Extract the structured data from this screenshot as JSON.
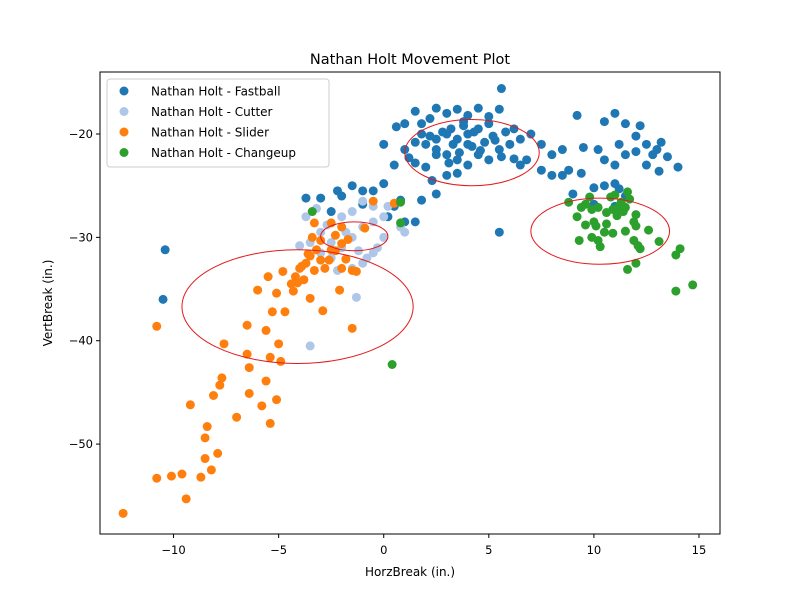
{
  "chart_data": {
    "type": "scatter",
    "title": "Nathan Holt Movement Plot",
    "xlabel": "HorzBreak (in.)",
    "ylabel": "VertBreak (in.)",
    "xlim": [
      -13.5,
      16.0
    ],
    "ylim": [
      -58.7,
      -14.0
    ],
    "xticks": [
      -10,
      -5,
      0,
      5,
      10,
      15
    ],
    "yticks": [
      -20,
      -30,
      -40,
      -50
    ],
    "xtick_labels": [
      "−10",
      "−5",
      "0",
      "5",
      "10",
      "15"
    ],
    "ytick_labels": [
      "−20",
      "−30",
      "−40",
      "−50"
    ],
    "grid": false,
    "legend_position": "upper-left",
    "series": [
      {
        "name": "Nathan Holt - Fastball",
        "color": "#1f77b4",
        "points": [
          [
            -10.4,
            -31.2
          ],
          [
            -10.5,
            -36.0
          ],
          [
            5.6,
            -15.6
          ],
          [
            5.5,
            -29.5
          ],
          [
            -3.7,
            -26.2
          ],
          [
            -2.0,
            -26.0
          ],
          [
            -1.5,
            -25.0
          ],
          [
            -1.0,
            -25.5
          ],
          [
            -0.5,
            -25.5
          ],
          [
            0.0,
            -24.8
          ],
          [
            0.5,
            -23.0
          ],
          [
            0.8,
            -26.4
          ],
          [
            1.0,
            -28.5
          ],
          [
            1.5,
            -28.5
          ],
          [
            1.8,
            -26.4
          ],
          [
            2.5,
            -25.8
          ],
          [
            0.0,
            -21.0
          ],
          [
            1.0,
            -21.5
          ],
          [
            1.2,
            -22.3
          ],
          [
            1.5,
            -20.8
          ],
          [
            0.6,
            -19.3
          ],
          [
            1.0,
            -19.0
          ],
          [
            1.8,
            -19.0
          ],
          [
            2.2,
            -18.5
          ],
          [
            1.5,
            -17.8
          ],
          [
            2.5,
            -17.5
          ],
          [
            3.0,
            -18.0
          ],
          [
            3.5,
            -17.6
          ],
          [
            4.0,
            -18.2
          ],
          [
            4.5,
            -17.5
          ],
          [
            5.0,
            -18.3
          ],
          [
            5.5,
            -17.6
          ],
          [
            5.0,
            -19.0
          ],
          [
            4.5,
            -19.5
          ],
          [
            4.0,
            -20.0
          ],
          [
            3.5,
            -20.5
          ],
          [
            3.0,
            -20.0
          ],
          [
            2.5,
            -20.5
          ],
          [
            2.0,
            -21.0
          ],
          [
            2.5,
            -21.5
          ],
          [
            3.0,
            -22.0
          ],
          [
            3.5,
            -22.5
          ],
          [
            4.0,
            -23.0
          ],
          [
            4.5,
            -22.0
          ],
          [
            5.0,
            -22.5
          ],
          [
            5.5,
            -21.5
          ],
          [
            6.0,
            -21.0
          ],
          [
            6.5,
            -20.5
          ],
          [
            7.0,
            -20.0
          ],
          [
            7.5,
            -21.0
          ],
          [
            8.0,
            -22.0
          ],
          [
            8.5,
            -21.5
          ],
          [
            6.5,
            -23.0
          ],
          [
            6.8,
            -22.5
          ],
          [
            7.5,
            -23.5
          ],
          [
            8.0,
            -24.0
          ],
          [
            8.5,
            -24.0
          ],
          [
            8.8,
            -23.5
          ],
          [
            2.3,
            -24.5
          ],
          [
            3.0,
            -24.0
          ],
          [
            3.5,
            -23.8
          ],
          [
            2.0,
            -23.2
          ],
          [
            1.5,
            -22.8
          ],
          [
            2.5,
            -22.0
          ],
          [
            4.2,
            -21.2
          ],
          [
            4.8,
            -20.8
          ],
          [
            5.2,
            -20.2
          ],
          [
            5.8,
            -19.8
          ],
          [
            6.2,
            -19.5
          ],
          [
            3.8,
            -19.2
          ],
          [
            3.2,
            -19.5
          ],
          [
            2.8,
            -19.8
          ],
          [
            2.2,
            -20.2
          ],
          [
            1.8,
            -20.0
          ],
          [
            3.6,
            -21.8
          ],
          [
            4.6,
            -21.6
          ],
          [
            5.6,
            -22.2
          ],
          [
            6.2,
            -22.4
          ],
          [
            3.3,
            -21.0
          ],
          [
            4.0,
            -21.0
          ],
          [
            9.2,
            -18.2
          ],
          [
            11.0,
            -18.0
          ],
          [
            10.5,
            -18.8
          ],
          [
            11.5,
            -19.0
          ],
          [
            12.2,
            -19.2
          ],
          [
            12.0,
            -20.2
          ],
          [
            12.5,
            -21.0
          ],
          [
            13.0,
            -21.5
          ],
          [
            13.2,
            -20.8
          ],
          [
            11.2,
            -21.0
          ],
          [
            10.2,
            -21.5
          ],
          [
            9.5,
            -21.3
          ],
          [
            10.5,
            -22.5
          ],
          [
            11.0,
            -23.0
          ],
          [
            11.5,
            -22.0
          ],
          [
            12.0,
            -21.7
          ],
          [
            12.8,
            -22.0
          ],
          [
            13.5,
            -22.2
          ],
          [
            13.1,
            -23.6
          ],
          [
            14.0,
            -23.2
          ],
          [
            10.0,
            -25.2
          ],
          [
            10.5,
            -25.0
          ],
          [
            11.2,
            -25.3
          ],
          [
            11.5,
            -26.0
          ],
          [
            9.4,
            -23.8
          ],
          [
            9.0,
            -25.8
          ],
          [
            11.0,
            -24.8
          ],
          [
            10.0,
            -26.8
          ],
          [
            11.0,
            -27.0
          ],
          [
            12.5,
            -23.0
          ],
          [
            -3.0,
            -26.2
          ],
          [
            -2.5,
            -27.5
          ],
          [
            0.2,
            -28.0
          ],
          [
            0.5,
            -27.0
          ],
          [
            -1.0,
            -26.8
          ],
          [
            -2.2,
            -25.5
          ],
          [
            3.8,
            -18.8
          ],
          [
            4.3,
            -19.8
          ],
          [
            5.3,
            -20.6
          ],
          [
            3.1,
            -22.8
          ]
        ]
      },
      {
        "name": "Nathan Holt - Cutter",
        "color": "#aec7e8",
        "points": [
          [
            -3.5,
            -40.5
          ],
          [
            -1.3,
            -35.8
          ],
          [
            -3.7,
            -28.0
          ],
          [
            -3.0,
            -29.5
          ],
          [
            -2.5,
            -30.5
          ],
          [
            -2.0,
            -31.0
          ],
          [
            -1.5,
            -30.0
          ],
          [
            -1.0,
            -29.0
          ],
          [
            -0.5,
            -28.5
          ],
          [
            0.0,
            -28.0
          ],
          [
            0.2,
            -27.0
          ],
          [
            0.8,
            -29.0
          ],
          [
            1.0,
            -29.5
          ],
          [
            -0.5,
            -31.5
          ],
          [
            -1.0,
            -32.5
          ],
          [
            -1.5,
            -33.0
          ],
          [
            -2.5,
            -32.0
          ],
          [
            -3.0,
            -31.5
          ],
          [
            -3.5,
            -30.5
          ],
          [
            -4.0,
            -30.8
          ],
          [
            -2.0,
            -28.0
          ],
          [
            -1.5,
            -27.5
          ],
          [
            -1.0,
            -26.5
          ],
          [
            -0.5,
            -27.0
          ],
          [
            0.0,
            -30.0
          ],
          [
            -0.3,
            -31.0
          ],
          [
            -0.8,
            -32.0
          ],
          [
            -1.8,
            -29.5
          ],
          [
            -2.7,
            -28.8
          ],
          [
            -3.2,
            -27.2
          ],
          [
            -1.2,
            -31.3
          ],
          [
            -2.2,
            -33.2
          ]
        ]
      },
      {
        "name": "Nathan Holt - Slider",
        "color": "#ff7f0e",
        "points": [
          [
            -12.4,
            -56.7
          ],
          [
            -10.8,
            -53.3
          ],
          [
            -10.1,
            -53.1
          ],
          [
            -9.6,
            -52.9
          ],
          [
            -9.4,
            -55.3
          ],
          [
            -8.7,
            -53.2
          ],
          [
            -8.5,
            -51.4
          ],
          [
            -8.2,
            -52.5
          ],
          [
            -7.9,
            -50.9
          ],
          [
            -8.5,
            -49.4
          ],
          [
            -8.4,
            -48.3
          ],
          [
            -9.2,
            -46.2
          ],
          [
            -8.1,
            -45.3
          ],
          [
            -7.8,
            -44.3
          ],
          [
            -7.7,
            -43.6
          ],
          [
            -7.0,
            -47.4
          ],
          [
            -6.4,
            -45.1
          ],
          [
            -5.8,
            -46.3
          ],
          [
            -5.6,
            -43.9
          ],
          [
            -6.4,
            -42.6
          ],
          [
            -5.4,
            -48.0
          ],
          [
            -5.1,
            -45.7
          ],
          [
            -5.4,
            -41.6
          ],
          [
            -4.9,
            -42.0
          ],
          [
            -5.0,
            -40.3
          ],
          [
            -6.5,
            -41.3
          ],
          [
            -6.5,
            -38.5
          ],
          [
            -5.6,
            -39.0
          ],
          [
            -7.6,
            -40.3
          ],
          [
            -5.3,
            -37.2
          ],
          [
            -4.7,
            -37.2
          ],
          [
            -5.1,
            -35.4
          ],
          [
            -5.5,
            -33.8
          ],
          [
            -6.0,
            -35.1
          ],
          [
            -4.8,
            -33.3
          ],
          [
            -4.4,
            -34.5
          ],
          [
            -4.3,
            -35.2
          ],
          [
            -4.2,
            -33.8
          ],
          [
            -4.0,
            -33.0
          ],
          [
            -3.8,
            -34.1
          ],
          [
            -3.7,
            -32.5
          ],
          [
            -3.5,
            -31.8
          ],
          [
            -3.3,
            -33.2
          ],
          [
            -3.2,
            -31.2
          ],
          [
            -3.0,
            -32.2
          ],
          [
            -2.8,
            -33.0
          ],
          [
            -2.6,
            -32.2
          ],
          [
            -2.5,
            -31.2
          ],
          [
            -2.3,
            -31.3
          ],
          [
            -2.0,
            -30.6
          ],
          [
            -2.0,
            -33.0
          ],
          [
            -1.8,
            -32.1
          ],
          [
            -1.5,
            -33.2
          ],
          [
            -1.5,
            -38.8
          ],
          [
            -1.7,
            -30.2
          ],
          [
            -1.3,
            -33.3
          ],
          [
            -2.9,
            -37.1
          ],
          [
            -3.5,
            -35.9
          ],
          [
            -2.1,
            -35.1
          ],
          [
            -4.1,
            -34.4
          ],
          [
            -3.4,
            -30.0
          ],
          [
            -3.0,
            -30.3
          ],
          [
            -2.3,
            -29.8
          ],
          [
            -2.0,
            -29.0
          ],
          [
            -3.3,
            -28.6
          ],
          [
            -0.9,
            -29.1
          ],
          [
            -0.5,
            -26.5
          ],
          [
            0.5,
            -26.7
          ],
          [
            -2.5,
            -28.6
          ],
          [
            -3.6,
            -31.6
          ],
          [
            -10.8,
            -38.6
          ],
          [
            -3.9,
            -32.8
          ]
        ]
      },
      {
        "name": "Nathan Holt - Changeup",
        "color": "#2ca02c",
        "points": [
          [
            0.4,
            -42.3
          ],
          [
            0.8,
            -26.6
          ],
          [
            0.8,
            -28.6
          ],
          [
            -3.4,
            -27.5
          ],
          [
            8.8,
            -26.6
          ],
          [
            9.2,
            -28.0
          ],
          [
            9.4,
            -27.1
          ],
          [
            9.6,
            -26.8
          ],
          [
            9.9,
            -27.3
          ],
          [
            10.0,
            -28.5
          ],
          [
            10.1,
            -28.9
          ],
          [
            9.6,
            -28.8
          ],
          [
            9.3,
            -30.3
          ],
          [
            9.9,
            -30.0
          ],
          [
            10.2,
            -30.3
          ],
          [
            10.3,
            -30.9
          ],
          [
            10.5,
            -29.5
          ],
          [
            10.6,
            -28.7
          ],
          [
            10.6,
            -27.6
          ],
          [
            10.9,
            -27.3
          ],
          [
            11.1,
            -27.9
          ],
          [
            11.2,
            -27.0
          ],
          [
            11.3,
            -26.6
          ],
          [
            11.4,
            -27.5
          ],
          [
            11.5,
            -27.1
          ],
          [
            11.7,
            -26.3
          ],
          [
            11.9,
            -28.5
          ],
          [
            12.0,
            -27.8
          ],
          [
            12.0,
            -28.9
          ],
          [
            11.5,
            -29.4
          ],
          [
            11.9,
            -30.3
          ],
          [
            12.1,
            -30.8
          ],
          [
            12.0,
            -32.5
          ],
          [
            11.6,
            -33.1
          ],
          [
            13.1,
            -30.4
          ],
          [
            12.6,
            -29.3
          ],
          [
            13.9,
            -31.7
          ],
          [
            14.1,
            -31.1
          ],
          [
            13.9,
            -35.2
          ],
          [
            14.7,
            -34.6
          ],
          [
            11.0,
            -25.9
          ],
          [
            11.6,
            -25.6
          ],
          [
            10.8,
            -26.1
          ],
          [
            10.2,
            -27.1
          ],
          [
            9.8,
            -26.1
          ],
          [
            12.2,
            -31.1
          ],
          [
            11.3,
            -27.4
          ],
          [
            10.9,
            -29.6
          ]
        ]
      }
    ],
    "annotations": [
      {
        "type": "ellipse",
        "cx": 4.2,
        "cy": -21.8,
        "rx": 3.2,
        "ry": 3.2,
        "color": "#e31a1c"
      },
      {
        "type": "ellipse",
        "cx": 10.3,
        "cy": -29.4,
        "rx": 3.3,
        "ry": 3.2,
        "color": "#e31a1c"
      },
      {
        "type": "ellipse",
        "cx": -1.4,
        "cy": -29.9,
        "rx": 1.6,
        "ry": 1.4,
        "color": "#e31a1c"
      },
      {
        "type": "ellipse",
        "cx": -4.1,
        "cy": -36.7,
        "rx": 5.5,
        "ry": 5.5,
        "color": "#e31a1c"
      }
    ]
  }
}
